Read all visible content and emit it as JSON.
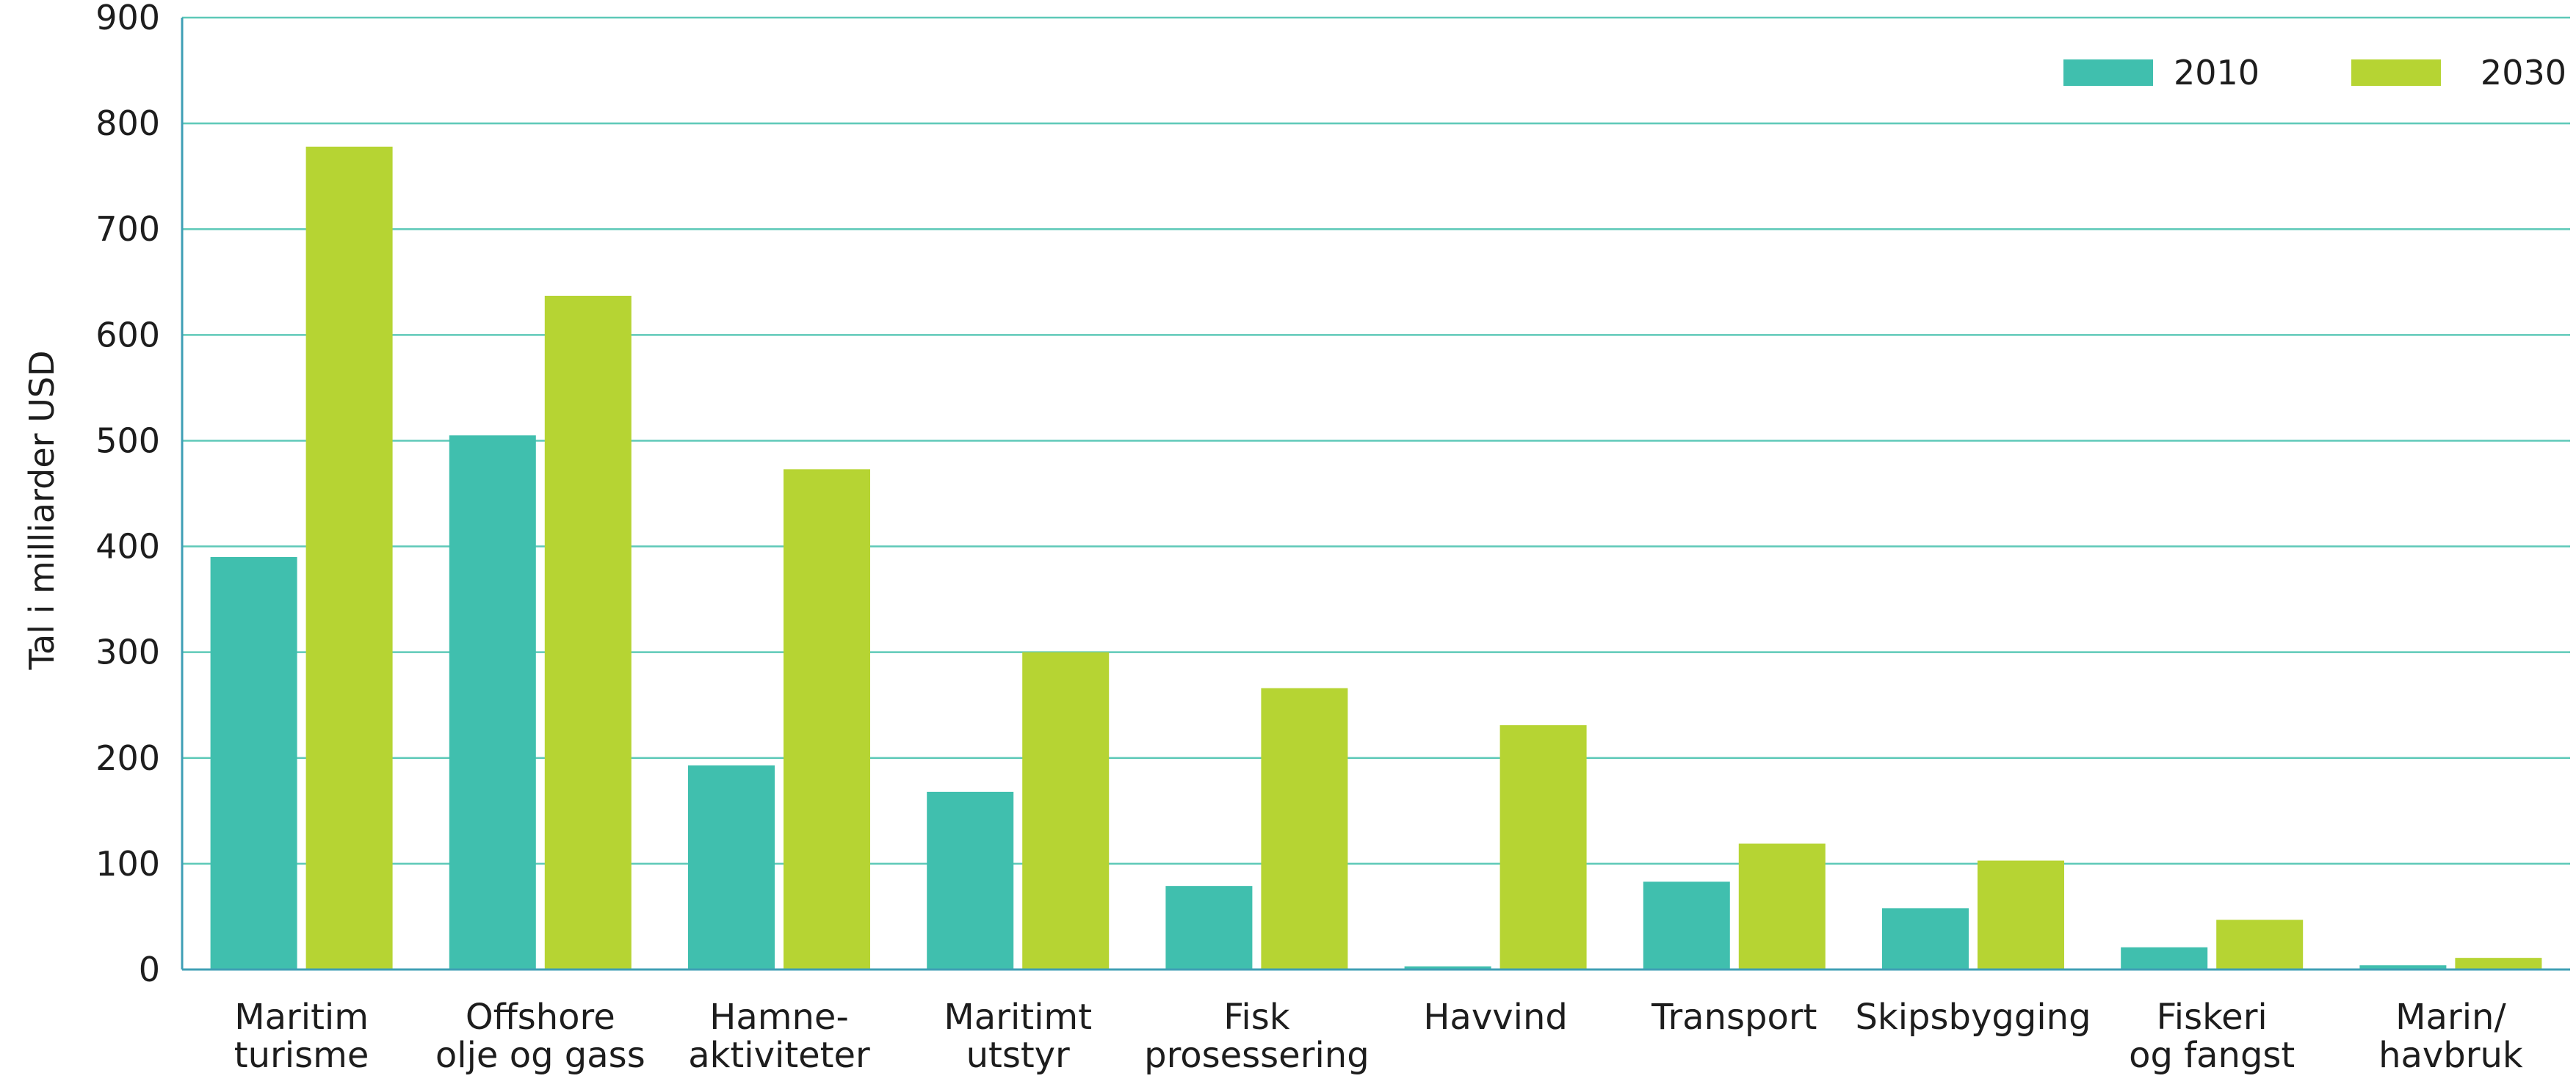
{
  "chart_data": {
    "type": "bar",
    "title": "",
    "xlabel": "",
    "ylabel": "Tal i milliarder USD",
    "ylim": [
      0,
      900
    ],
    "yticks": [
      0,
      100,
      200,
      300,
      400,
      500,
      600,
      700,
      800,
      900
    ],
    "grid": true,
    "legend_position": "top-right",
    "categories": [
      [
        "Maritim",
        "turisme"
      ],
      [
        "Offshore",
        "olje og gass"
      ],
      [
        "Hamne-",
        "aktiviteter"
      ],
      [
        "Maritimt",
        "utstyr"
      ],
      [
        "Fisk",
        "prosessering"
      ],
      [
        "Havvind"
      ],
      [
        "Transport"
      ],
      [
        "Skipsbygging"
      ],
      [
        "Fiskeri",
        "og fangst"
      ],
      [
        "Marin/",
        "havbruk"
      ]
    ],
    "series": [
      {
        "name": "2010",
        "color": "#40bfae",
        "values": [
          390,
          505,
          193,
          168,
          79,
          3,
          83,
          58,
          21,
          4
        ]
      },
      {
        "name": "2030",
        "color": "#b6d433",
        "values": [
          778,
          637,
          473,
          300,
          266,
          231,
          119,
          103,
          47,
          11
        ]
      }
    ],
    "gridline_color": "#5ec9b8",
    "axis_color": "#3f9fb5"
  }
}
